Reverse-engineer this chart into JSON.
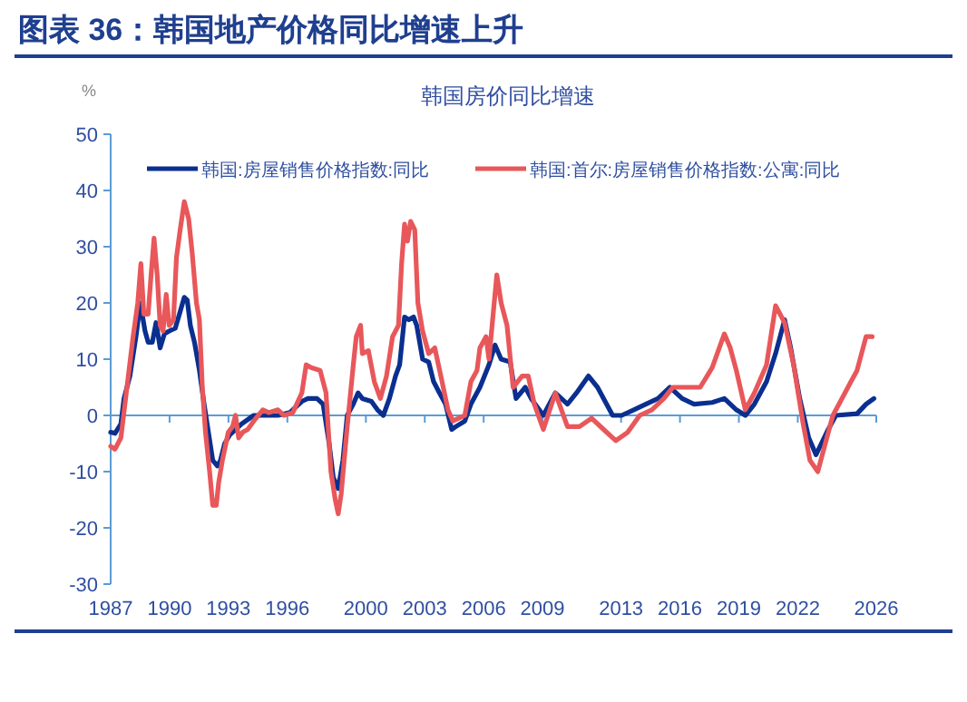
{
  "chart_data": {
    "type": "line",
    "title": "图表 36：韩国地产价格同比增速上升",
    "subtitle": "韩国房价同比增速",
    "ylabel": "%",
    "xlim": [
      1987,
      2026
    ],
    "ylim": [
      -30,
      50
    ],
    "yticks": [
      -30,
      -20,
      -10,
      0,
      10,
      20,
      30,
      40,
      50
    ],
    "xticks": [
      1987,
      1990,
      1993,
      1996,
      2000,
      2003,
      2006,
      2009,
      2013,
      2016,
      2019,
      2022,
      2026
    ],
    "ref_lines": [
      {
        "axis": "y",
        "value": 0,
        "color": "#5b9bd5"
      }
    ],
    "grid": false,
    "legend": "top",
    "marker": "none",
    "series": [
      {
        "name": "韩国:房屋销售价格指数:同比",
        "color": "#0a2f8f",
        "x": [
          1987.0,
          1987.22,
          1987.52,
          1987.68,
          1987.98,
          1988.29,
          1988.51,
          1988.75,
          1988.91,
          1989.12,
          1989.31,
          1989.52,
          1989.74,
          1989.98,
          1990.29,
          1990.5,
          1990.75,
          1990.9,
          1991.06,
          1991.27,
          1991.52,
          1991.76,
          1991.98,
          1992.2,
          1992.44,
          1992.59,
          1992.81,
          1993.06,
          1993.36,
          1993.67,
          1994.29,
          1994.9,
          1995.52,
          1996.13,
          1996.74,
          1997.05,
          1997.51,
          1997.82,
          1998.13,
          1998.34,
          1998.59,
          1998.83,
          1999.05,
          1999.36,
          1999.6,
          1999.82,
          2000.28,
          2000.59,
          2000.89,
          2001.2,
          2001.51,
          2001.72,
          2001.97,
          2002.19,
          2002.43,
          2002.59,
          2002.89,
          2003.2,
          2003.45,
          2003.75,
          2004.06,
          2004.37,
          2004.58,
          2005.04,
          2005.35,
          2005.81,
          2006.27,
          2006.58,
          2006.89,
          2007.35,
          2007.65,
          2008.12,
          2008.42,
          2009.04,
          2009.65,
          2010.27,
          2010.73,
          2011.34,
          2011.8,
          2012.57,
          2013.03,
          2013.65,
          2014.26,
          2014.88,
          2015.49,
          2016.11,
          2016.72,
          2017.64,
          2018.26,
          2018.87,
          2019.33,
          2019.79,
          2020.41,
          2020.87,
          2021.33,
          2021.64,
          2022.1,
          2022.56,
          2022.93,
          2023.48,
          2023.94,
          2025.02,
          2025.48,
          2025.88
        ],
        "values": [
          -3,
          -3.2,
          -1.5,
          3,
          7,
          14,
          20,
          15,
          13,
          13,
          16.5,
          12,
          14.5,
          15,
          15.5,
          18,
          21,
          20.5,
          16,
          13,
          8,
          2,
          -3,
          -8,
          -9,
          -8,
          -5,
          -3.5,
          -2.5,
          -1.5,
          0,
          0,
          0,
          0.5,
          2.5,
          3,
          3,
          2,
          -5,
          -11,
          -13,
          -8,
          0,
          2,
          4,
          3,
          2.5,
          1,
          0,
          3,
          7,
          9,
          17.5,
          17,
          17.5,
          16,
          10,
          9.5,
          6,
          4,
          2,
          -2.5,
          -2,
          -1,
          2,
          5,
          9,
          12.5,
          10,
          9.5,
          3,
          5,
          3,
          0,
          4,
          2,
          4,
          7,
          5,
          0,
          0,
          1,
          2,
          3,
          5,
          3,
          2,
          2.3,
          3,
          1,
          0,
          2,
          6,
          11,
          17,
          12,
          3,
          -4,
          -7,
          -3,
          0,
          0.3,
          2,
          3
        ]
      },
      {
        "name": "韩国:首尔:房屋销售价格指数:公寓:同比",
        "color": "#e8575a",
        "x": [
          1987.0,
          1987.22,
          1987.52,
          1987.83,
          1988.14,
          1988.38,
          1988.54,
          1988.69,
          1988.91,
          1989.06,
          1989.21,
          1989.37,
          1989.52,
          1989.67,
          1989.83,
          1989.98,
          1990.2,
          1990.35,
          1990.54,
          1990.75,
          1990.97,
          1991.15,
          1991.37,
          1991.52,
          1991.67,
          1991.83,
          1992.04,
          1992.2,
          1992.38,
          1992.5,
          1992.69,
          1992.99,
          1993.21,
          1993.36,
          1993.52,
          1993.73,
          1993.98,
          1994.29,
          1994.75,
          1995.05,
          1995.52,
          1995.82,
          1996.28,
          1996.74,
          1996.96,
          1997.21,
          1997.67,
          1997.97,
          1998.22,
          1998.44,
          1998.59,
          1998.74,
          1999.05,
          1999.36,
          1999.51,
          1999.73,
          1999.82,
          2000.13,
          2000.43,
          2000.74,
          2001.05,
          2001.36,
          2001.66,
          2001.82,
          2001.97,
          2002.12,
          2002.28,
          2002.49,
          2002.65,
          2002.89,
          2003.2,
          2003.51,
          2003.88,
          2004.18,
          2004.43,
          2005.04,
          2005.35,
          2005.66,
          2005.81,
          2006.12,
          2006.27,
          2006.67,
          2006.89,
          2007.19,
          2007.5,
          2007.96,
          2008.27,
          2008.58,
          2009.04,
          2009.65,
          2010.27,
          2010.88,
          2011.5,
          2012.11,
          2012.73,
          2013.34,
          2013.95,
          2014.57,
          2015.18,
          2015.64,
          2016.11,
          2017.03,
          2017.64,
          2018.26,
          2018.56,
          2018.87,
          2019.33,
          2019.79,
          2020.41,
          2020.87,
          2021.33,
          2021.79,
          2022.25,
          2022.62,
          2023.02,
          2023.48,
          2023.79,
          2024.25,
          2024.71,
          2025.02,
          2025.48,
          2025.79
        ],
        "values": [
          -5.5,
          -6,
          -4,
          5,
          14,
          20,
          27,
          18,
          18,
          25,
          31.5,
          25,
          16,
          15,
          21.5,
          16,
          17,
          28,
          33,
          38,
          35,
          29,
          20,
          17,
          5,
          -3,
          -10,
          -16,
          -16,
          -12,
          -8,
          -3,
          -2,
          0,
          -4,
          -3,
          -2.5,
          -1,
          1,
          0.5,
          1,
          0,
          0.5,
          4,
          9,
          8.5,
          8,
          4,
          -10,
          -15,
          -17.5,
          -14,
          -2,
          9,
          14,
          16,
          11,
          11.5,
          6,
          3,
          7,
          14,
          16,
          27,
          34,
          31,
          34.5,
          33,
          20,
          15,
          11,
          12,
          6,
          1,
          -1,
          0,
          6,
          8,
          12,
          14,
          10,
          25,
          20,
          16,
          5,
          7,
          7,
          2,
          -2.5,
          4,
          -2,
          -2,
          -0.5,
          -2.5,
          -4.5,
          -3,
          0,
          1,
          3,
          5,
          5,
          5,
          8.5,
          14.5,
          12,
          8,
          1,
          4,
          9,
          19.5,
          16.5,
          9,
          -1,
          -8,
          -10,
          -4,
          0,
          3,
          6,
          8,
          14,
          14
        ]
      }
    ]
  }
}
